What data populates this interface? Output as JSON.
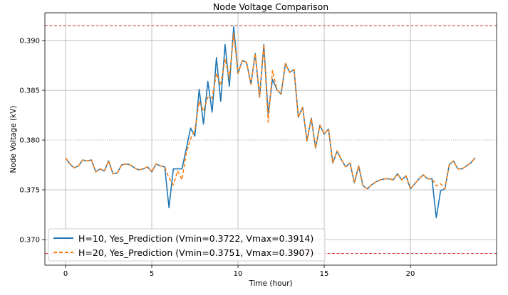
{
  "chart_data": {
    "type": "line",
    "title": "Node Voltage Comparison",
    "xlabel": "Time (hour)",
    "ylabel": "Node Voltage (kV)",
    "xlim": [
      -1.2,
      25.0
    ],
    "ylim": [
      0.36743,
      0.39279
    ],
    "xticks": [
      0,
      5,
      10,
      15,
      20
    ],
    "xtick_labels": [
      "0",
      "5",
      "10",
      "15",
      "20"
    ],
    "yticks": [
      0.37,
      0.375,
      0.38,
      0.385,
      0.39
    ],
    "ytick_labels": [
      "0.370",
      "0.375",
      "0.380",
      "0.385",
      "0.390"
    ],
    "grid": true,
    "legend_position": "lower-left",
    "x_step_hours": 0.25,
    "reference_lines": [
      {
        "y": 0.3915,
        "color": "#d62728",
        "style": "dashed"
      },
      {
        "y": 0.3686,
        "color": "#d62728",
        "style": "dashed"
      }
    ],
    "series": [
      {
        "name": "H=10, Yes_Prediction (Vmin=0.3722, Vmax=0.3914)",
        "color": "#1f77b4",
        "style": "solid",
        "values": [
          0.3782,
          0.3776,
          0.3772,
          0.3774,
          0.378,
          0.3779,
          0.378,
          0.3768,
          0.3771,
          0.3769,
          0.3779,
          0.3766,
          0.3767,
          0.3775,
          0.3776,
          0.3775,
          0.3772,
          0.377,
          0.3771,
          0.3773,
          0.3768,
          0.3776,
          0.3774,
          0.3773,
          0.3732,
          0.3771,
          0.3771,
          0.3771,
          0.3791,
          0.3812,
          0.3804,
          0.3851,
          0.3816,
          0.3859,
          0.3828,
          0.3883,
          0.3839,
          0.3896,
          0.3854,
          0.3914,
          0.3867,
          0.388,
          0.3878,
          0.3856,
          0.3887,
          0.3843,
          0.3896,
          0.3826,
          0.3861,
          0.3851,
          0.3846,
          0.3877,
          0.3868,
          0.3871,
          0.3823,
          0.3833,
          0.3799,
          0.3822,
          0.3792,
          0.3815,
          0.3806,
          0.3811,
          0.3777,
          0.3789,
          0.378,
          0.3773,
          0.3777,
          0.3757,
          0.3774,
          0.3754,
          0.3751,
          0.3755,
          0.3758,
          0.376,
          0.3761,
          0.3761,
          0.376,
          0.3766,
          0.376,
          0.3764,
          0.3751,
          0.3756,
          0.3761,
          0.3765,
          0.3761,
          0.3761,
          0.3722,
          0.3749,
          0.3751,
          0.3775,
          0.3779,
          0.3771,
          0.3771,
          0.3774,
          0.3777,
          0.3782
        ]
      },
      {
        "name": "H=20, Yes_Prediction (Vmin=0.3751, Vmax=0.3907)",
        "color": "#ff7f0e",
        "style": "dashed",
        "values": [
          0.3782,
          0.3776,
          0.3772,
          0.3774,
          0.378,
          0.3779,
          0.378,
          0.3768,
          0.3771,
          0.3769,
          0.3779,
          0.3766,
          0.3767,
          0.3775,
          0.3776,
          0.3775,
          0.3772,
          0.377,
          0.3771,
          0.3773,
          0.3768,
          0.3776,
          0.3774,
          0.3773,
          0.3762,
          0.3755,
          0.3769,
          0.376,
          0.3787,
          0.3801,
          0.381,
          0.3839,
          0.3829,
          0.3843,
          0.3842,
          0.3867,
          0.3855,
          0.3882,
          0.3862,
          0.3907,
          0.3867,
          0.388,
          0.3878,
          0.3856,
          0.3887,
          0.3843,
          0.3896,
          0.3818,
          0.387,
          0.3851,
          0.3846,
          0.3877,
          0.3868,
          0.3871,
          0.3823,
          0.3833,
          0.3799,
          0.3822,
          0.3792,
          0.3815,
          0.3806,
          0.3811,
          0.3777,
          0.3789,
          0.378,
          0.3773,
          0.3777,
          0.3757,
          0.3774,
          0.3754,
          0.3751,
          0.3755,
          0.3758,
          0.376,
          0.3761,
          0.3761,
          0.376,
          0.3766,
          0.376,
          0.3764,
          0.3751,
          0.3756,
          0.3761,
          0.3765,
          0.3761,
          0.3761,
          0.3754,
          0.3756,
          0.3751,
          0.3775,
          0.3779,
          0.3771,
          0.3771,
          0.3774,
          0.3777,
          0.3782
        ]
      }
    ]
  }
}
